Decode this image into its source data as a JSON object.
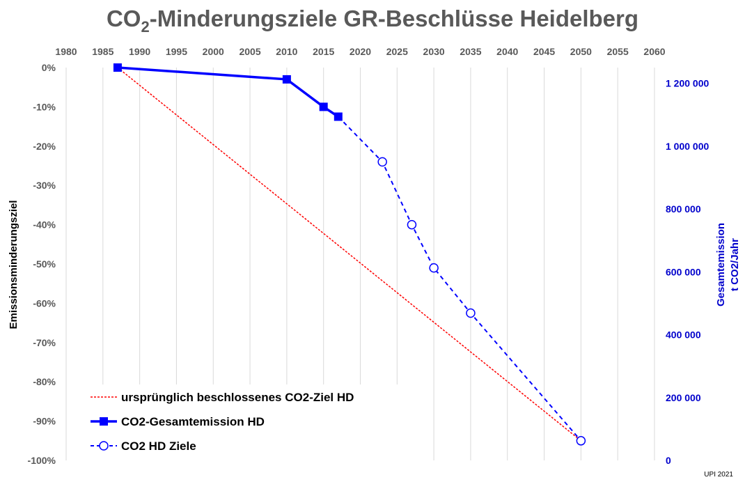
{
  "chart_data": {
    "type": "line",
    "title": "CO2-Minderungsziele GR-Beschlüsse Heidelberg",
    "title_parts": {
      "pre": "CO",
      "sub": "2",
      "post": "-Minderungsziele GR-Beschlüsse Heidelberg"
    },
    "ylabel": "Emissionsminderungsziel",
    "y2label_lines": [
      "Gesamtemission",
      "t CO2/Jahr"
    ],
    "xlim": [
      1980,
      2060
    ],
    "ylim": [
      -100,
      0
    ],
    "y2lim": [
      0,
      1250000
    ],
    "x_ticks": [
      "1980",
      "1985",
      "1990",
      "1995",
      "2000",
      "2005",
      "2010",
      "2015",
      "2020",
      "2025",
      "2030",
      "2035",
      "2040",
      "2045",
      "2050",
      "2055",
      "2060"
    ],
    "y_ticks": [
      "0%",
      "-10%",
      "-20%",
      "-30%",
      "-40%",
      "-50%",
      "-60%",
      "-70%",
      "-80%",
      "-90%",
      "-100%"
    ],
    "y2_ticks": [
      "0",
      "200 000",
      "400 000",
      "600 000",
      "800 000",
      "1 000 000",
      "1 200 000"
    ],
    "grid": "vertical",
    "legend_position": "bottom-left",
    "series": [
      {
        "name": "ursprünglich beschlossenes CO2-Ziel HD",
        "style": "dotted",
        "color": "#FF0000",
        "x": [
          1987,
          2050
        ],
        "y": [
          0,
          -95
        ]
      },
      {
        "name": "CO2-Gesamtemission HD",
        "style": "solid-square",
        "color": "#0000FF",
        "x": [
          1987,
          2010,
          2015,
          2017
        ],
        "y": [
          0,
          -3,
          -10,
          -12.5
        ]
      },
      {
        "name": "CO2 HD Ziele",
        "style": "dashed-circle",
        "color": "#0000FF",
        "x": [
          2017,
          2023,
          2027,
          2030,
          2035,
          2050
        ],
        "y": [
          -12.5,
          -24,
          -40,
          -51,
          -62.5,
          -95
        ]
      }
    ],
    "footnote": "UPI 2021"
  },
  "colors": {
    "axis_text": "#595959",
    "secondary_axis": "#0000CC",
    "grid": "#D9D9D9"
  }
}
